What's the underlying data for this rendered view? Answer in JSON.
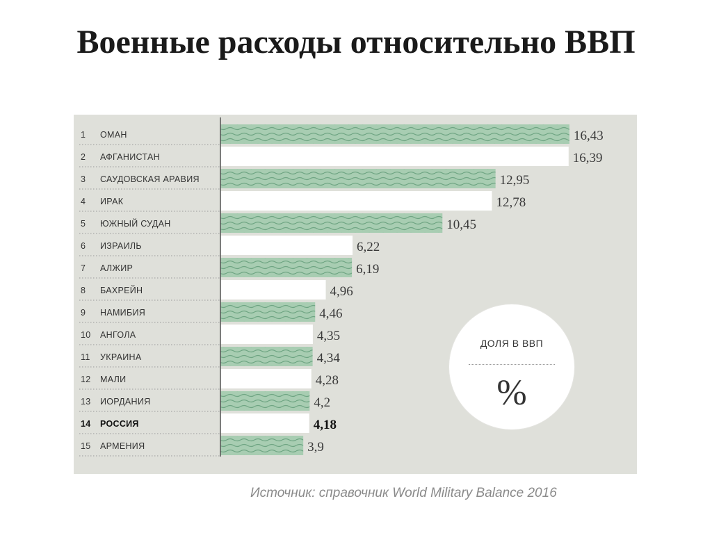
{
  "title": "Военные расходы относительно ВВП",
  "source_note": "Источник: справочник World Military Balance 2016",
  "unit_badge": {
    "label": "ДОЛЯ В ВВП",
    "symbol": "%"
  },
  "colors": {
    "panel": "#dfe0da",
    "bar_green": "#a8cdb2",
    "bar_wave": "#6fa583",
    "bar_white": "#ffffff",
    "axis": "#555555"
  },
  "chart_data": {
    "type": "bar",
    "orientation": "horizontal",
    "title": "Военные расходы относительно ВВП",
    "xlabel": "",
    "ylabel": "",
    "xlim": [
      0,
      16.43
    ],
    "grid": false,
    "categories": [
      {
        "rank": "1",
        "name": "ОМАН"
      },
      {
        "rank": "2",
        "name": "АФГАНИСТАН"
      },
      {
        "rank": "3",
        "name": "САУДОВСКАЯ АРАВИЯ"
      },
      {
        "rank": "4",
        "name": "ИРАК"
      },
      {
        "rank": "5",
        "name": "ЮЖНЫЙ СУДАН"
      },
      {
        "rank": "6",
        "name": "ИЗРАИЛЬ"
      },
      {
        "rank": "7",
        "name": "АЛЖИР"
      },
      {
        "rank": "8",
        "name": "БАХРЕЙН"
      },
      {
        "rank": "9",
        "name": "НАМИБИЯ"
      },
      {
        "rank": "10",
        "name": "АНГОЛА"
      },
      {
        "rank": "11",
        "name": "УКРАИНА"
      },
      {
        "rank": "12",
        "name": "МАЛИ"
      },
      {
        "rank": "13",
        "name": "ИОРДАНИЯ"
      },
      {
        "rank": "14",
        "name": "РОССИЯ"
      },
      {
        "rank": "15",
        "name": "АРМЕНИЯ"
      }
    ],
    "values": [
      16.43,
      16.39,
      12.95,
      12.78,
      10.45,
      6.22,
      6.19,
      4.96,
      4.46,
      4.35,
      4.34,
      4.28,
      4.2,
      4.18,
      3.9
    ],
    "value_labels": [
      "16,43",
      "16,39",
      "12,95",
      "12,78",
      "10,45",
      "6,22",
      "6,19",
      "4,96",
      "4,46",
      "4,35",
      "4,34",
      "4,28",
      "4,2",
      "4,18",
      "3,9"
    ],
    "highlight_index": 13
  }
}
